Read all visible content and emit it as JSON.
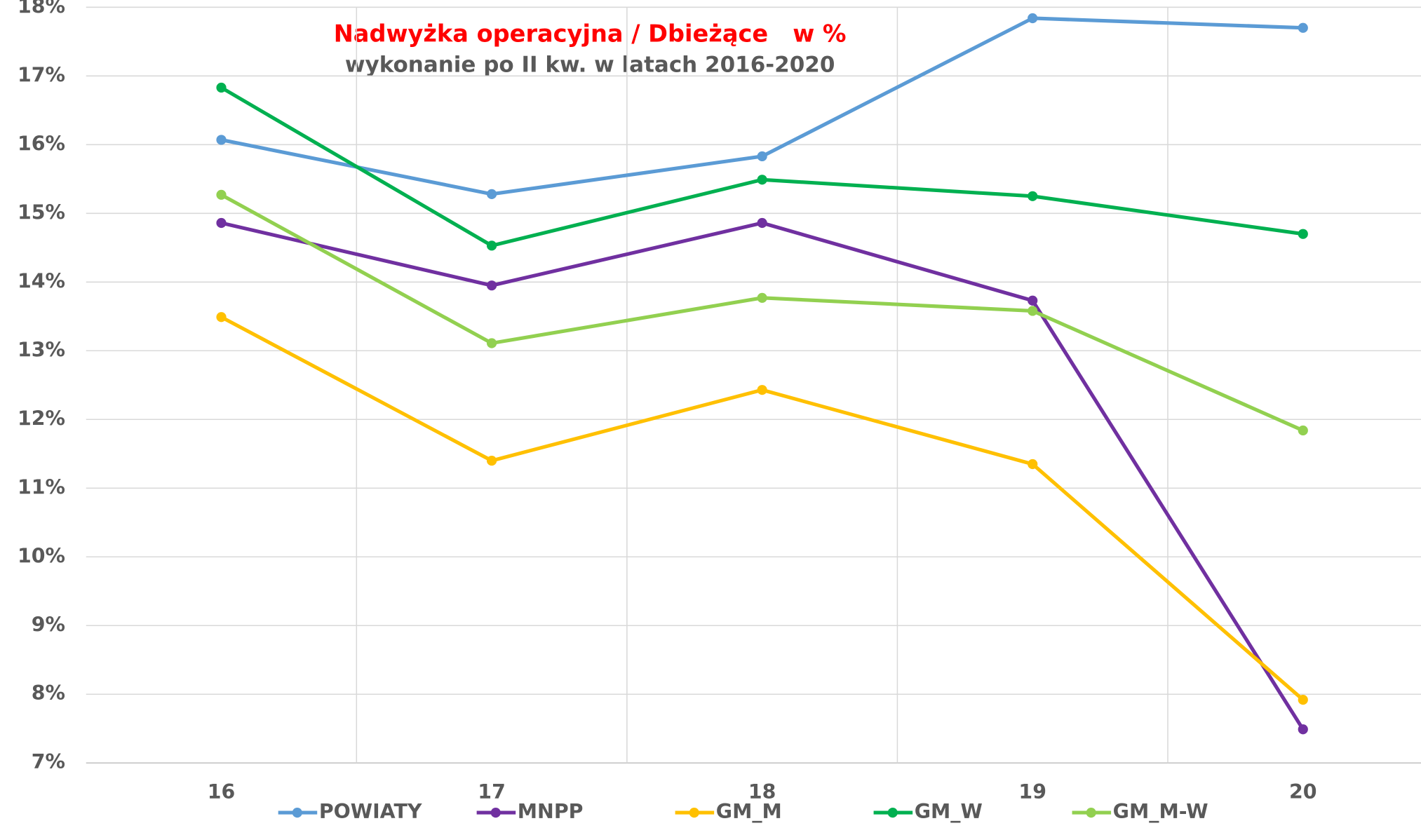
{
  "chart_data": {
    "type": "line",
    "title": "Nadwyżka operacyjna / Dbieżące   w %",
    "subtitle": "wykonanie po II kw. w latach 2016-2020",
    "categories": [
      "16",
      "17",
      "18",
      "19",
      "20"
    ],
    "series": [
      {
        "name": "POWIATY",
        "color": "#5b9bd5",
        "values": [
          16.07,
          15.28,
          15.83,
          17.84,
          17.7
        ]
      },
      {
        "name": "MNPP",
        "color": "#7030a0",
        "values": [
          14.86,
          13.95,
          14.86,
          13.73,
          7.49
        ]
      },
      {
        "name": "GM_M",
        "color": "#ffc000",
        "values": [
          13.49,
          11.4,
          12.43,
          11.35,
          7.92
        ]
      },
      {
        "name": "GM_W",
        "color": "#00b050",
        "values": [
          16.83,
          14.53,
          15.49,
          15.25,
          14.7
        ]
      },
      {
        "name": "GM_M-W",
        "color": "#92d050",
        "values": [
          15.27,
          13.11,
          13.77,
          13.58,
          11.84
        ]
      }
    ],
    "ylim": [
      7,
      18
    ],
    "yticks": [
      {
        "value": 7,
        "label": "7%"
      },
      {
        "value": 8,
        "label": "8%"
      },
      {
        "value": 9,
        "label": "9%"
      },
      {
        "value": 10,
        "label": "10%"
      },
      {
        "value": 11,
        "label": "11%"
      },
      {
        "value": 12,
        "label": "12%"
      },
      {
        "value": 13,
        "label": "13%"
      },
      {
        "value": 14,
        "label": "14%"
      },
      {
        "value": 15,
        "label": "15%"
      },
      {
        "value": 16,
        "label": "16%"
      },
      {
        "value": 17,
        "label": "17%"
      },
      {
        "value": 18,
        "label": "18%"
      }
    ],
    "grid": true,
    "legend": "bottom"
  }
}
